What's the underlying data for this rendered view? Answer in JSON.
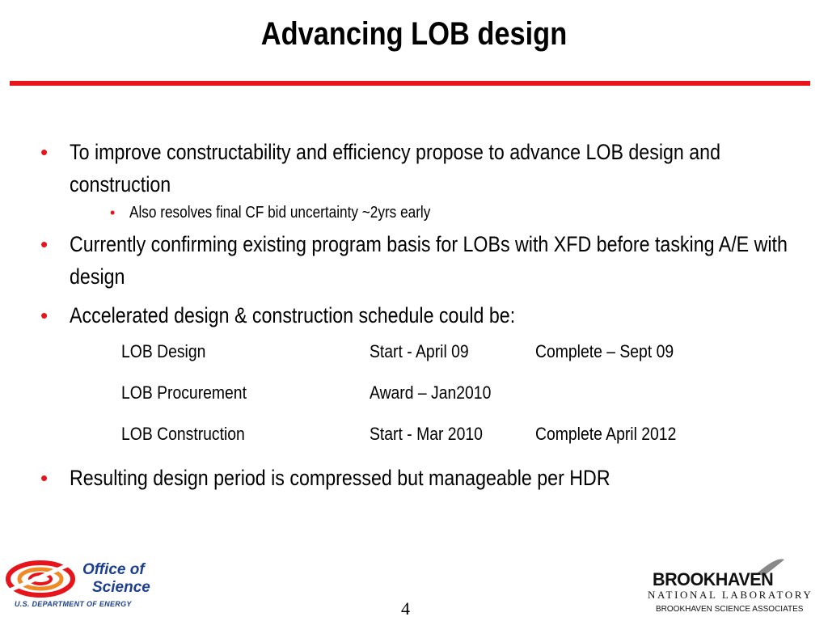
{
  "slide": {
    "title": "Advancing LOB design",
    "bullets": [
      {
        "text": "To improve constructability and efficiency propose to advance LOB design and construction",
        "sub": [
          "Also resolves final CF bid uncertainty ~2yrs early"
        ]
      },
      {
        "text": "Currently confirming existing program basis for LOBs with XFD before tasking A/E with design",
        "sub": []
      },
      {
        "text": "Accelerated design & construction schedule could be:",
        "sub": []
      },
      {
        "text": "Resulting design period is compressed but manageable per HDR",
        "sub": []
      }
    ],
    "schedule": [
      {
        "task": "LOB Design",
        "start": "Start - April 09",
        "complete": "Complete – Sept 09"
      },
      {
        "task": "LOB Procurement",
        "start": "Award – Jan2010",
        "complete": ""
      },
      {
        "task": "LOB Construction",
        "start": "Start  - Mar 2010",
        "complete": "Complete April 2012"
      }
    ],
    "page_number": "4"
  },
  "footer": {
    "office_of_science": {
      "line1": "Office of",
      "line2": "Science",
      "dept": "U.S. DEPARTMENT OF ENERGY"
    },
    "bnl": {
      "name": "BROOKHAVEN",
      "lab": "NATIONAL LABORATORY",
      "associates": "BROOKHAVEN SCIENCE ASSOCIATES"
    }
  },
  "colors": {
    "accent": "#e8141b",
    "doe_blue": "#1d3f8f"
  }
}
